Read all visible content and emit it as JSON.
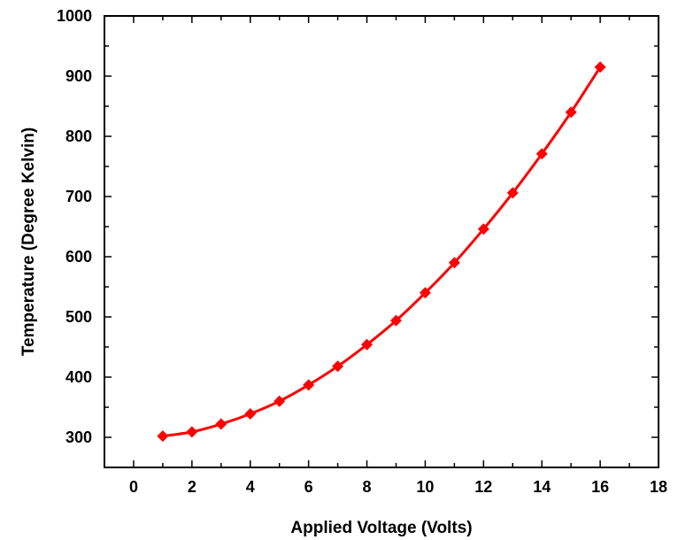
{
  "chart_data": {
    "type": "line",
    "title": "",
    "xlabel": "Applied Voltage (Volts)",
    "ylabel": "Temperature (Degree Kelvin)",
    "xlim": [
      -1,
      18
    ],
    "ylim": [
      250,
      1000
    ],
    "xticks": [
      0,
      2,
      4,
      6,
      8,
      10,
      12,
      14,
      16,
      18
    ],
    "yticks": [
      300,
      400,
      500,
      600,
      700,
      800,
      900,
      1000
    ],
    "grid": false,
    "legend": "none",
    "marker": "diamond",
    "color": "#ff0000",
    "series": [
      {
        "x": [
          1,
          2,
          3,
          4,
          5,
          6,
          7,
          8,
          9,
          10,
          11,
          12,
          13,
          14,
          15,
          16
        ],
        "y": [
          302,
          309,
          322,
          339,
          360,
          387,
          418,
          454,
          494,
          540,
          590,
          646,
          706,
          771,
          840,
          915
        ]
      }
    ]
  }
}
